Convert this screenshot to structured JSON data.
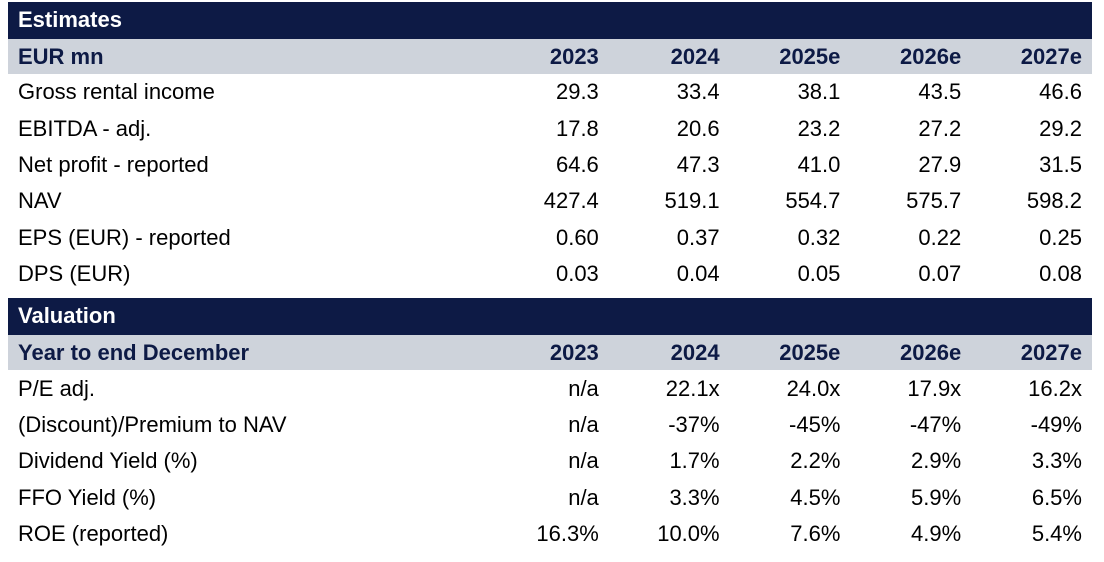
{
  "estimates": {
    "title": "Estimates",
    "header_label": "EUR mn",
    "years": [
      "2023",
      "2024",
      "2025e",
      "2026e",
      "2027e"
    ],
    "rows": [
      {
        "label": "Gross rental income",
        "values": [
          "29.3",
          "33.4",
          "38.1",
          "43.5",
          "46.6"
        ]
      },
      {
        "label": "EBITDA - adj.",
        "values": [
          "17.8",
          "20.6",
          "23.2",
          "27.2",
          "29.2"
        ]
      },
      {
        "label": "Net profit - reported",
        "values": [
          "64.6",
          "47.3",
          "41.0",
          "27.9",
          "31.5"
        ]
      },
      {
        "label": "NAV",
        "values": [
          "427.4",
          "519.1",
          "554.7",
          "575.7",
          "598.2"
        ]
      },
      {
        "label": "EPS (EUR) - reported",
        "values": [
          "0.60",
          "0.37",
          "0.32",
          "0.22",
          "0.25"
        ]
      },
      {
        "label": "DPS (EUR)",
        "values": [
          "0.03",
          "0.04",
          "0.05",
          "0.07",
          "0.08"
        ]
      }
    ]
  },
  "valuation": {
    "title": "Valuation",
    "header_label": "Year to end December",
    "years": [
      "2023",
      "2024",
      "2025e",
      "2026e",
      "2027e"
    ],
    "rows": [
      {
        "label": "P/E adj.",
        "values": [
          "n/a",
          "22.1x",
          "24.0x",
          "17.9x",
          "16.2x"
        ]
      },
      {
        "label": "(Discount)/Premium to NAV",
        "values": [
          "n/a",
          "-37%",
          "-45%",
          "-47%",
          "-49%"
        ]
      },
      {
        "label": "Dividend Yield (%)",
        "values": [
          "n/a",
          "1.7%",
          "2.2%",
          "2.9%",
          "3.3%"
        ]
      },
      {
        "label": "FFO Yield (%)",
        "values": [
          "n/a",
          "3.3%",
          "4.5%",
          "5.9%",
          "6.5%"
        ]
      },
      {
        "label": "ROE (reported)",
        "values": [
          "16.3%",
          "10.0%",
          "7.6%",
          "4.9%",
          "5.4%"
        ]
      }
    ]
  }
}
